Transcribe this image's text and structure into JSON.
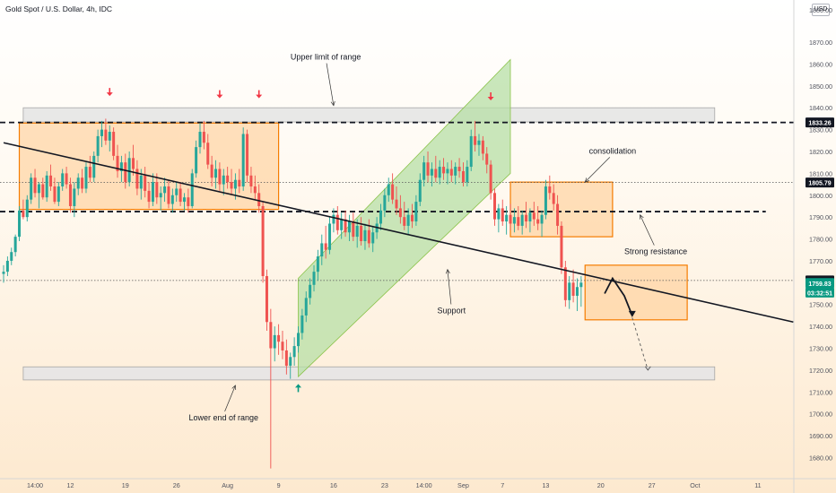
{
  "header": {
    "title": "Gold Spot / U.S. Dollar, 4h, IDC",
    "currency": "USD"
  },
  "colors": {
    "up": "#26a69a",
    "down": "#ef5350",
    "orange_box_fill": "#ffc98a",
    "orange_box_stroke": "#f57c00",
    "channel_fill": "#b7dfa6",
    "range_band_fill": "#e6e6e6",
    "arrow_red": "#f23645",
    "arrow_green": "#089981",
    "price_tag_dark": "#131722"
  },
  "chart_data": {
    "type": "candlestick",
    "y_axis": {
      "ylim": [
        1672,
        1886
      ],
      "ticks": [
        1680,
        1690,
        1700,
        1710,
        1720,
        1730,
        1740,
        1750,
        1760,
        1770,
        1780,
        1790,
        1800,
        1810,
        1820,
        1830,
        1840,
        1850,
        1860,
        1870
      ],
      "tick_labels": [
        "1680.00",
        "1690.00",
        "1700.00",
        "1710.00",
        "1720.00",
        "1730.00",
        "1740.00",
        "1750.00",
        "1760.00",
        "1770.00",
        "1780.00",
        "1790.00",
        "1800.00",
        "1810.00",
        "1820.00",
        "1830.00",
        "1840.00",
        "1850.00",
        "1860.00",
        "1870.00"
      ],
      "top_partial_label": "1880.00"
    },
    "x_axis": {
      "ticks": [
        {
          "bar": 8,
          "label": "14:00"
        },
        {
          "bar": 17,
          "label": "12"
        },
        {
          "bar": 31,
          "label": "19"
        },
        {
          "bar": 44,
          "label": "26"
        },
        {
          "bar": 57,
          "label": "Aug"
        },
        {
          "bar": 70,
          "label": "9"
        },
        {
          "bar": 84,
          "label": "16"
        },
        {
          "bar": 97,
          "label": "23"
        },
        {
          "bar": 107,
          "label": "14:00"
        },
        {
          "bar": 117,
          "label": "Sep"
        },
        {
          "bar": 127,
          "label": "7"
        },
        {
          "bar": 138,
          "label": "13"
        },
        {
          "bar": 152,
          "label": "20"
        },
        {
          "bar": 165,
          "label": "27"
        },
        {
          "bar": 176,
          "label": "Oct"
        },
        {
          "bar": 192,
          "label": "11"
        }
      ]
    },
    "price_tags": [
      {
        "value": 1833.26,
        "label": "1833.26",
        "style": "dark"
      },
      {
        "value": 1805.79,
        "label": "1805.79",
        "style": "dark"
      },
      {
        "value": 1761.0,
        "label": "1761.00",
        "style": "dark"
      },
      {
        "value": 1759.83,
        "label": "1759.83",
        "style": "green"
      },
      {
        "value": 1755.5,
        "label": "03:32:51",
        "style": "green_countdown"
      }
    ],
    "horizontal_levels": [
      {
        "value": 1833.26,
        "style": "thick-dashed"
      },
      {
        "value": 1792.5,
        "style": "thick-dashed"
      },
      {
        "value": 1805.79,
        "style": "dotted"
      },
      {
        "value": 1761.0,
        "style": "dotted"
      }
    ],
    "range_bands": [
      {
        "from_bar": 5,
        "to_bar": 181,
        "y_low": 1833.5,
        "y_high": 1840
      },
      {
        "from_bar": 5,
        "to_bar": 181,
        "y_low": 1715.5,
        "y_high": 1721.5
      }
    ],
    "orange_boxes": [
      {
        "from_bar": 4,
        "to_bar": 70,
        "y_low": 1793.5,
        "y_high": 1833
      },
      {
        "from_bar": 129,
        "to_bar": 155,
        "y_low": 1781,
        "y_high": 1806
      },
      {
        "from_bar": 148,
        "to_bar": 174,
        "y_low": 1743,
        "y_high": 1768
      }
    ],
    "channel": [
      {
        "bar": 75,
        "value": 1717
      },
      {
        "bar": 129,
        "value": 1810
      },
      {
        "bar": 129,
        "value": 1862
      },
      {
        "bar": 75,
        "value": 1762
      }
    ],
    "trendline": [
      {
        "bar": 0,
        "value": 1824
      },
      {
        "bar": 201,
        "value": 1742
      }
    ],
    "projection": [
      {
        "bar": 153,
        "value": 1755
      },
      {
        "bar": 155,
        "value": 1762
      },
      {
        "bar": 158,
        "value": 1754
      },
      {
        "bar": 160,
        "value": 1745
      }
    ],
    "projection_dashed": [
      {
        "bar": 160,
        "value": 1744
      },
      {
        "bar": 164,
        "value": 1720
      }
    ],
    "arrows": [
      {
        "bar": 27,
        "value": 1847,
        "dir": "down",
        "color": "red"
      },
      {
        "bar": 55,
        "value": 1846,
        "dir": "down",
        "color": "red"
      },
      {
        "bar": 65,
        "value": 1846,
        "dir": "down",
        "color": "red"
      },
      {
        "bar": 124,
        "value": 1845,
        "dir": "down",
        "color": "red"
      },
      {
        "bar": 75,
        "value": 1712,
        "dir": "up",
        "color": "green"
      }
    ],
    "annotations": [
      {
        "text": "Upper limit of range",
        "bar": 82,
        "value": 1862,
        "pointer": {
          "bar": 84,
          "value": 1841
        }
      },
      {
        "text": "Lower end of range",
        "bar": 56,
        "value": 1697,
        "pointer": {
          "bar": 59,
          "value": 1713
        }
      },
      {
        "text": "Support",
        "bar": 114,
        "value": 1746,
        "pointer": {
          "bar": 113,
          "value": 1766
        }
      },
      {
        "text": "consolidation",
        "bar": 155,
        "value": 1819,
        "pointer": {
          "bar": 148,
          "value": 1806
        }
      },
      {
        "text": "Strong resistance",
        "bar": 166,
        "value": 1773,
        "pointer": {
          "bar": 162,
          "value": 1791
        }
      }
    ],
    "candles": [
      [
        1764,
        1768,
        1760,
        1765
      ],
      [
        1765,
        1772,
        1763,
        1770
      ],
      [
        1770,
        1776,
        1768,
        1774
      ],
      [
        1774,
        1782,
        1772,
        1781
      ],
      [
        1781,
        1795,
        1779,
        1793
      ],
      [
        1793,
        1798,
        1789,
        1790
      ],
      [
        1790,
        1800,
        1788,
        1798
      ],
      [
        1798,
        1810,
        1796,
        1808
      ],
      [
        1808,
        1812,
        1799,
        1801
      ],
      [
        1801,
        1806,
        1794,
        1805
      ],
      [
        1805,
        1808,
        1798,
        1799
      ],
      [
        1799,
        1811,
        1797,
        1809
      ],
      [
        1809,
        1814,
        1802,
        1804
      ],
      [
        1804,
        1808,
        1796,
        1797
      ],
      [
        1797,
        1806,
        1795,
        1804
      ],
      [
        1804,
        1812,
        1802,
        1810
      ],
      [
        1810,
        1813,
        1803,
        1805
      ],
      [
        1805,
        1808,
        1792,
        1795
      ],
      [
        1795,
        1806,
        1790,
        1803
      ],
      [
        1803,
        1810,
        1800,
        1808
      ],
      [
        1808,
        1812,
        1801,
        1803
      ],
      [
        1803,
        1815,
        1801,
        1813
      ],
      [
        1813,
        1818,
        1806,
        1808
      ],
      [
        1808,
        1820,
        1806,
        1818
      ],
      [
        1818,
        1830,
        1815,
        1827
      ],
      [
        1827,
        1834,
        1822,
        1830
      ],
      [
        1830,
        1835,
        1823,
        1825
      ],
      [
        1825,
        1832,
        1820,
        1829
      ],
      [
        1829,
        1831,
        1816,
        1818
      ],
      [
        1818,
        1823,
        1808,
        1811
      ],
      [
        1811,
        1818,
        1806,
        1815
      ],
      [
        1815,
        1819,
        1803,
        1806
      ],
      [
        1806,
        1820,
        1804,
        1817
      ],
      [
        1817,
        1823,
        1809,
        1812
      ],
      [
        1812,
        1816,
        1800,
        1803
      ],
      [
        1803,
        1812,
        1798,
        1809
      ],
      [
        1809,
        1813,
        1799,
        1802
      ],
      [
        1802,
        1806,
        1794,
        1797
      ],
      [
        1797,
        1810,
        1795,
        1806
      ],
      [
        1806,
        1810,
        1796,
        1799
      ],
      [
        1799,
        1804,
        1793,
        1801
      ],
      [
        1801,
        1808,
        1797,
        1804
      ],
      [
        1804,
        1807,
        1794,
        1796
      ],
      [
        1796,
        1803,
        1792,
        1800
      ],
      [
        1800,
        1806,
        1797,
        1803
      ],
      [
        1803,
        1806,
        1795,
        1797
      ],
      [
        1797,
        1801,
        1793,
        1799
      ],
      [
        1799,
        1803,
        1792,
        1795
      ],
      [
        1795,
        1812,
        1794,
        1810
      ],
      [
        1810,
        1825,
        1808,
        1822
      ],
      [
        1822,
        1833,
        1819,
        1829
      ],
      [
        1829,
        1834,
        1821,
        1824
      ],
      [
        1824,
        1828,
        1812,
        1814
      ],
      [
        1814,
        1818,
        1804,
        1808
      ],
      [
        1808,
        1816,
        1803,
        1812
      ],
      [
        1812,
        1815,
        1802,
        1805
      ],
      [
        1805,
        1812,
        1800,
        1809
      ],
      [
        1809,
        1813,
        1803,
        1806
      ],
      [
        1806,
        1812,
        1800,
        1803
      ],
      [
        1803,
        1810,
        1798,
        1807
      ],
      [
        1807,
        1812,
        1801,
        1804
      ],
      [
        1804,
        1831,
        1802,
        1828
      ],
      [
        1828,
        1830,
        1806,
        1809
      ],
      [
        1809,
        1813,
        1801,
        1804
      ],
      [
        1804,
        1809,
        1798,
        1801
      ],
      [
        1801,
        1805,
        1792,
        1795
      ],
      [
        1795,
        1797,
        1760,
        1763
      ],
      [
        1763,
        1766,
        1738,
        1742
      ],
      [
        1742,
        1748,
        1675,
        1730
      ],
      [
        1730,
        1740,
        1724,
        1736
      ],
      [
        1736,
        1741,
        1727,
        1733
      ],
      [
        1733,
        1738,
        1725,
        1729
      ],
      [
        1729,
        1734,
        1718,
        1722
      ],
      [
        1722,
        1728,
        1716,
        1726
      ],
      [
        1726,
        1735,
        1722,
        1731
      ],
      [
        1731,
        1740,
        1728,
        1737
      ],
      [
        1737,
        1748,
        1734,
        1745
      ],
      [
        1745,
        1756,
        1742,
        1753
      ],
      [
        1753,
        1762,
        1750,
        1759
      ],
      [
        1759,
        1768,
        1756,
        1765
      ],
      [
        1765,
        1775,
        1761,
        1772
      ],
      [
        1772,
        1782,
        1768,
        1778
      ],
      [
        1778,
        1786,
        1771,
        1775
      ],
      [
        1775,
        1790,
        1773,
        1787
      ],
      [
        1787,
        1794,
        1783,
        1791
      ],
      [
        1791,
        1795,
        1782,
        1784
      ],
      [
        1784,
        1792,
        1780,
        1789
      ],
      [
        1789,
        1793,
        1781,
        1783
      ],
      [
        1783,
        1791,
        1779,
        1788
      ],
      [
        1788,
        1792,
        1779,
        1781
      ],
      [
        1781,
        1789,
        1776,
        1786
      ],
      [
        1786,
        1790,
        1777,
        1779
      ],
      [
        1779,
        1787,
        1775,
        1784
      ],
      [
        1784,
        1789,
        1776,
        1778
      ],
      [
        1778,
        1786,
        1774,
        1783
      ],
      [
        1783,
        1790,
        1780,
        1787
      ],
      [
        1787,
        1796,
        1784,
        1793
      ],
      [
        1793,
        1803,
        1790,
        1800
      ],
      [
        1800,
        1808,
        1797,
        1805
      ],
      [
        1805,
        1810,
        1796,
        1798
      ],
      [
        1798,
        1804,
        1791,
        1794
      ],
      [
        1794,
        1800,
        1787,
        1790
      ],
      [
        1790,
        1797,
        1784,
        1786
      ],
      [
        1786,
        1794,
        1782,
        1791
      ],
      [
        1791,
        1796,
        1785,
        1788
      ],
      [
        1788,
        1800,
        1786,
        1797
      ],
      [
        1797,
        1810,
        1795,
        1807
      ],
      [
        1807,
        1818,
        1804,
        1815
      ],
      [
        1815,
        1820,
        1806,
        1809
      ],
      [
        1809,
        1815,
        1804,
        1812
      ],
      [
        1812,
        1818,
        1806,
        1808
      ],
      [
        1808,
        1816,
        1805,
        1813
      ],
      [
        1813,
        1817,
        1807,
        1810
      ],
      [
        1810,
        1815,
        1805,
        1812
      ],
      [
        1812,
        1816,
        1806,
        1809
      ],
      [
        1809,
        1815,
        1805,
        1813
      ],
      [
        1813,
        1817,
        1808,
        1811
      ],
      [
        1811,
        1815,
        1804,
        1806
      ],
      [
        1806,
        1816,
        1804,
        1813
      ],
      [
        1813,
        1830,
        1811,
        1827
      ],
      [
        1827,
        1834,
        1820,
        1823
      ],
      [
        1823,
        1828,
        1818,
        1825
      ],
      [
        1825,
        1827,
        1816,
        1819
      ],
      [
        1819,
        1822,
        1810,
        1814
      ],
      [
        1814,
        1816,
        1798,
        1801
      ],
      [
        1801,
        1803,
        1786,
        1789
      ],
      [
        1789,
        1796,
        1783,
        1794
      ],
      [
        1794,
        1798,
        1786,
        1788
      ],
      [
        1788,
        1795,
        1782,
        1791
      ],
      [
        1791,
        1796,
        1784,
        1787
      ],
      [
        1787,
        1794,
        1783,
        1790
      ],
      [
        1790,
        1795,
        1784,
        1786
      ],
      [
        1786,
        1793,
        1782,
        1791
      ],
      [
        1791,
        1797,
        1785,
        1788
      ],
      [
        1788,
        1794,
        1783,
        1792
      ],
      [
        1792,
        1797,
        1786,
        1789
      ],
      [
        1789,
        1795,
        1784,
        1787
      ],
      [
        1787,
        1793,
        1781,
        1791
      ],
      [
        1791,
        1807,
        1789,
        1804
      ],
      [
        1804,
        1809,
        1798,
        1801
      ],
      [
        1801,
        1805,
        1793,
        1796
      ],
      [
        1796,
        1800,
        1782,
        1786
      ],
      [
        1786,
        1788,
        1764,
        1767
      ],
      [
        1767,
        1770,
        1749,
        1752
      ],
      [
        1752,
        1763,
        1748,
        1760
      ],
      [
        1760,
        1766,
        1751,
        1754
      ],
      [
        1754,
        1762,
        1747,
        1758
      ],
      [
        1758,
        1763,
        1749,
        1760
      ]
    ]
  }
}
